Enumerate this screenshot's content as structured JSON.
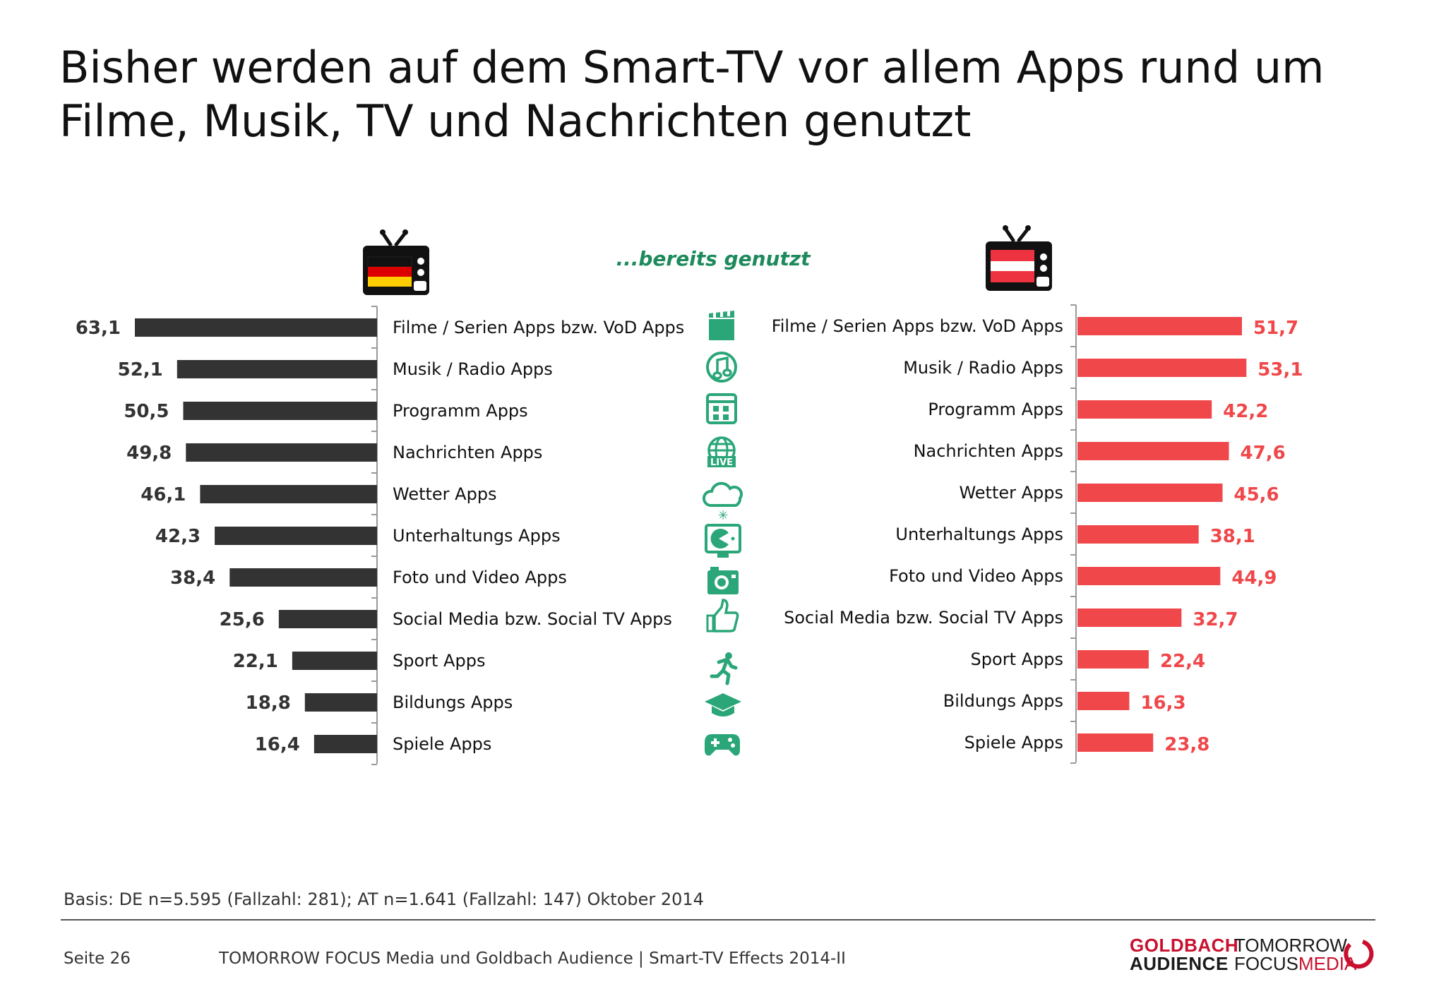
{
  "title_lines": [
    "Bisher werden auf dem Smart-TV vor allem Apps rund um",
    "Filme, Musik, TV und Nachrichten genutzt"
  ],
  "subtitle": "...bereits genutzt",
  "colors": {
    "de_bar": "#333333",
    "at_bar": "#f0474a",
    "icon": "#2aa678",
    "subtitle": "#1e8a5c"
  },
  "footer": {
    "basis": "Basis: DE n=5.595 (Fallzahl: 281); AT n=1.641 (Fallzahl: 147) Oktober 2014",
    "page": "Seite 26",
    "source": "TOMORROW FOCUS Media und Goldbach Audience | Smart-TV Effects 2014-II",
    "logo_goldbach": [
      "GOLDBACH",
      "AUDIENCE"
    ],
    "logo_tfm_line1": "TOMORROW",
    "logo_tfm_focus": "FOCUS",
    "logo_tfm_media": "MEDIA"
  },
  "icons": [
    "clapperboard-icon",
    "music-note-icon",
    "program-grid-icon",
    "live-globe-icon",
    "weather-cloud-icon",
    "entertainment-tv-icon",
    "camera-icon",
    "thumbs-up-icon",
    "runner-icon",
    "graduation-cap-icon",
    "gamepad-icon"
  ],
  "chart_data": {
    "type": "bar",
    "orientation": "horizontal",
    "categories": [
      "Filme / Serien Apps bzw. VoD Apps",
      "Musik / Radio Apps",
      "Programm Apps",
      "Nachrichten Apps",
      "Wetter Apps",
      "Unterhaltungs Apps",
      "Foto und Video Apps",
      "Social Media bzw. Social TV Apps",
      "Sport Apps",
      "Bildungs Apps",
      "Spiele Apps"
    ],
    "series": [
      {
        "flag": "germany",
        "values": [
          63.1,
          52.1,
          50.5,
          49.8,
          46.1,
          42.3,
          38.4,
          25.6,
          22.1,
          18.8,
          16.4
        ],
        "labels": [
          "63,1",
          "52,1",
          "50,5",
          "49,8",
          "46,1",
          "42,3",
          "38,4",
          "25,6",
          "22,1",
          "18,8",
          "16,4"
        ]
      },
      {
        "flag": "austria",
        "values": [
          51.7,
          53.1,
          42.2,
          47.6,
          45.6,
          38.1,
          44.9,
          32.7,
          22.4,
          16.3,
          23.8
        ],
        "labels": [
          "51,7",
          "53,1",
          "42,2",
          "47,6",
          "45,6",
          "38,1",
          "44,9",
          "32,7",
          "22,4",
          "16,3",
          "23,8"
        ]
      }
    ],
    "unit": "%",
    "grid": false
  }
}
